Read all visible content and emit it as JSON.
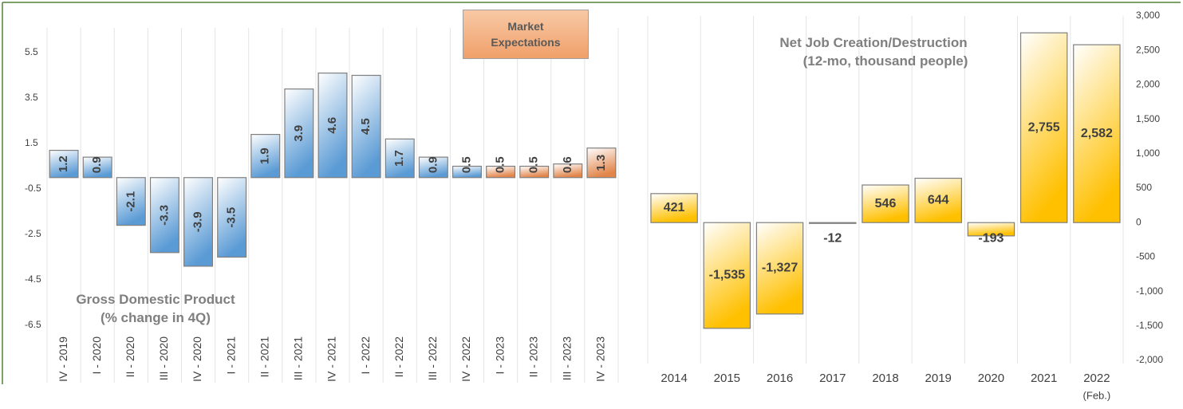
{
  "chart_data": [
    {
      "type": "bar",
      "title": "Gross Domestic Product",
      "subtitle": "(% change in 4Q)",
      "annotation": "Market Expectations",
      "categories": [
        "IV - 2019",
        "I - 2020",
        "II - 2020",
        "III - 2020",
        "IV - 2020",
        "I - 2021",
        "II - 2021",
        "III - 2021",
        "IV - 2021",
        "I - 2022",
        "II - 2022",
        "III - 2022",
        "IV - 2022",
        "I - 2023",
        "II - 2023",
        "III - 2023",
        "IV - 2023"
      ],
      "values": [
        1.2,
        0.9,
        -2.1,
        -3.3,
        -3.9,
        -3.5,
        1.9,
        3.9,
        4.6,
        4.5,
        1.7,
        0.9,
        0.5,
        0.5,
        0.5,
        0.6,
        1.3
      ],
      "colors": [
        "#5b9bd5",
        "#5b9bd5",
        "#5b9bd5",
        "#5b9bd5",
        "#5b9bd5",
        "#5b9bd5",
        "#5b9bd5",
        "#5b9bd5",
        "#5b9bd5",
        "#5b9bd5",
        "#5b9bd5",
        "#5b9bd5",
        "#5b9bd5",
        "#e2854a",
        "#e2854a",
        "#e2854a",
        "#e2854a"
      ],
      "ylim": [
        -6.5,
        6.5
      ],
      "yticks": [
        5.5,
        3.5,
        1.5,
        -0.5,
        -2.5,
        -4.5,
        -6.5
      ],
      "axis_side": "left",
      "grid": "vertical"
    },
    {
      "type": "bar",
      "title": "Net Job Creation/Destruction",
      "subtitle": "(12-mo, thousand people)",
      "categories": [
        "2014",
        "2015",
        "2016",
        "2017",
        "2018",
        "2019",
        "2020",
        "2021",
        "2022"
      ],
      "category_note": "(Feb.)",
      "values": [
        421,
        -1535,
        -1327,
        -12,
        546,
        644,
        -193,
        2755,
        2582
      ],
      "value_labels": [
        "421",
        "-1,535",
        "-1,327",
        "-12",
        "546",
        "644",
        "-193",
        "2,755",
        "2,582"
      ],
      "color": "#ffc000",
      "ylim": [
        -2000,
        3000
      ],
      "yticks": [
        {
          "value": 3000,
          "label": "3,000"
        },
        {
          "value": 2500,
          "label": "2,500"
        },
        {
          "value": 2000,
          "label": "2,000"
        },
        {
          "value": 1500,
          "label": "1,500"
        },
        {
          "value": 1000,
          "label": "1,000"
        },
        500,
        0,
        -500,
        {
          "value": -1000,
          "label": "-1,000"
        },
        {
          "value": -1500,
          "label": "-1,500"
        },
        {
          "value": -2000,
          "label": "-2,000"
        }
      ],
      "axis_side": "right",
      "grid": "vertical"
    }
  ]
}
